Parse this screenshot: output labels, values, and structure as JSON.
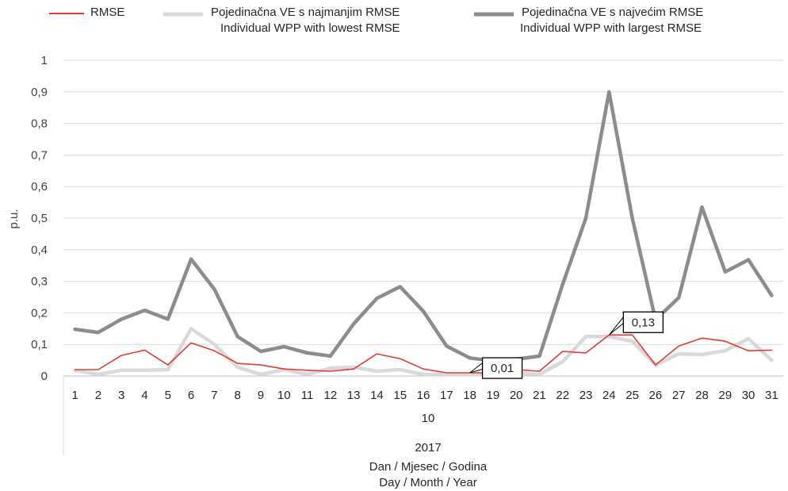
{
  "legend": {
    "rmse": "RMSE",
    "lowest_line1": "Pojedinačna VE s najmanjim RMSE",
    "lowest_line2": "Individual WPP with lowest RMSE",
    "largest_line1": "Pojedinačna VE s najvećim RMSE",
    "largest_line2": "Individual WPP with largest RMSE"
  },
  "axis": {
    "month": "10",
    "year": "2017",
    "xlabel_line1": "Dan / Mjesec / Godina",
    "xlabel_line2": "Day / Month / Year"
  },
  "chart_data": {
    "type": "line",
    "ylabel": "p.u.",
    "ylim": [
      0,
      1
    ],
    "yticks": [
      "0",
      "0,1",
      "0,2",
      "0,3",
      "0,4",
      "0,5",
      "0,6",
      "0,7",
      "0,8",
      "0,9",
      "1"
    ],
    "grid": true,
    "legend_position": "top",
    "categories": [
      "1",
      "2",
      "3",
      "4",
      "5",
      "6",
      "7",
      "8",
      "9",
      "10",
      "11",
      "12",
      "13",
      "14",
      "15",
      "16",
      "17",
      "18",
      "19",
      "20",
      "21",
      "22",
      "23",
      "24",
      "25",
      "26",
      "27",
      "28",
      "29",
      "30",
      "31"
    ],
    "series": [
      {
        "name": "RMSE",
        "color": "#e03c31",
        "values": [
          0.02,
          0.02,
          0.065,
          0.082,
          0.035,
          0.105,
          0.08,
          0.04,
          0.035,
          0.022,
          0.018,
          0.015,
          0.022,
          0.07,
          0.055,
          0.022,
          0.01,
          0.01,
          0.01,
          0.02,
          0.015,
          0.078,
          0.073,
          0.13,
          0.13,
          0.035,
          0.095,
          0.12,
          0.11,
          0.08,
          0.082
        ]
      },
      {
        "name": "Pojedinačna VE s najmanjim RMSE / Individual WPP with lowest RMSE",
        "color": "#d9d9d9",
        "values": [
          0.018,
          0.005,
          0.018,
          0.018,
          0.02,
          0.15,
          0.1,
          0.028,
          0.005,
          0.02,
          0.005,
          0.025,
          0.028,
          0.015,
          0.02,
          0.005,
          0.005,
          0.005,
          0.005,
          0.01,
          0.005,
          0.045,
          0.125,
          0.125,
          0.11,
          0.035,
          0.07,
          0.068,
          0.08,
          0.118,
          0.05
        ]
      },
      {
        "name": "Pojedinačna VE s najvećim RMSE / Individual WPP with largest RMSE",
        "color": "#8c8c8c",
        "values": [
          0.148,
          0.138,
          0.18,
          0.208,
          0.18,
          0.37,
          0.275,
          0.125,
          0.078,
          0.093,
          0.073,
          0.063,
          0.165,
          0.246,
          0.283,
          0.205,
          0.095,
          0.057,
          0.048,
          0.053,
          0.063,
          0.29,
          0.5,
          0.9,
          0.5,
          0.178,
          0.248,
          0.535,
          0.33,
          0.368,
          0.255
        ]
      }
    ],
    "data_labels": [
      {
        "series": "RMSE",
        "category": "18",
        "text": "0,01"
      },
      {
        "series": "RMSE",
        "category": "24",
        "text": "0,13"
      }
    ]
  }
}
